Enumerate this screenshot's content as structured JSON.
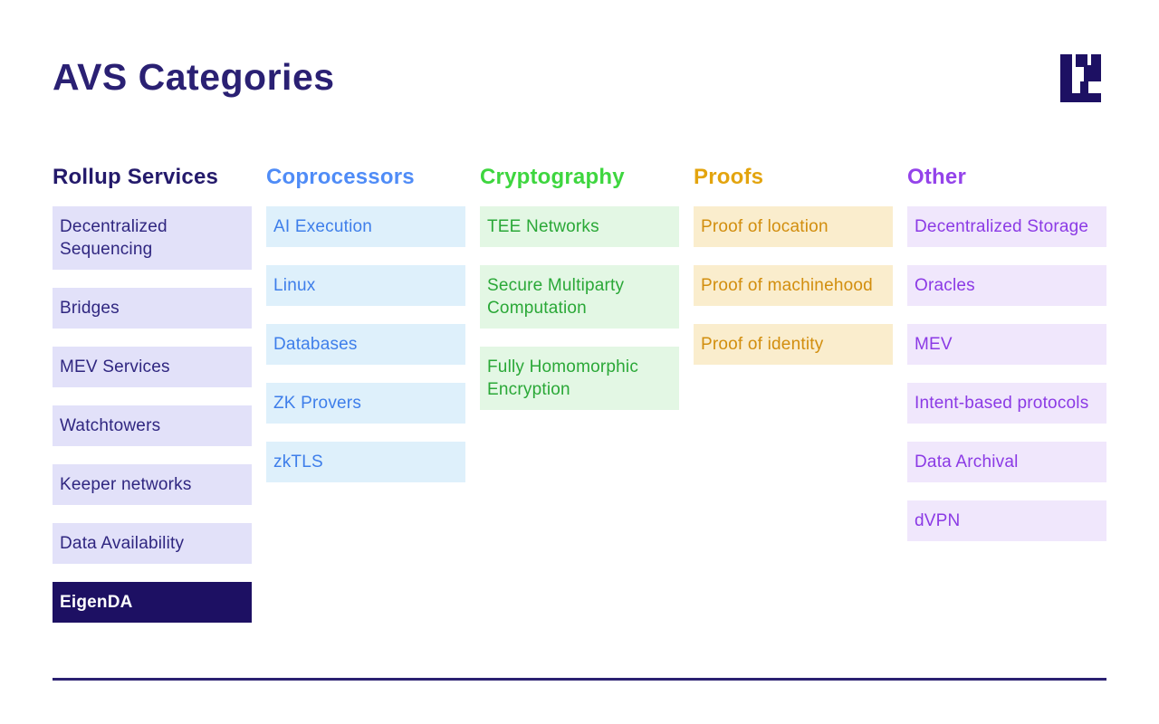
{
  "page": {
    "title": "AVS Categories",
    "logo_color": "#1d1063",
    "divider_color": "#2b2171",
    "title_color": "#2a2073"
  },
  "columns": [
    {
      "id": "rollup-services",
      "label": "Rollup Services",
      "header_color": "#241a6b",
      "item_text_color": "#2f2680",
      "item_bg_color": "#e2e1f9",
      "items": [
        {
          "label": "Decentralized Sequencing"
        },
        {
          "label": "Bridges"
        },
        {
          "label": "MEV Services"
        },
        {
          "label": "Watchtowers"
        },
        {
          "label": "Keeper networks"
        },
        {
          "label": "Data Availability"
        },
        {
          "label": "EigenDA",
          "highlight": true,
          "highlight_bg": "#1d1063",
          "highlight_text": "#ffffff"
        }
      ]
    },
    {
      "id": "coprocessors",
      "label": "Coprocessors",
      "header_color": "#4f8cf7",
      "item_text_color": "#3e7eea",
      "item_bg_color": "#def0fb",
      "items": [
        {
          "label": "AI Execution"
        },
        {
          "label": "Linux"
        },
        {
          "label": "Databases"
        },
        {
          "label": "ZK Provers"
        },
        {
          "label": "zkTLS"
        }
      ]
    },
    {
      "id": "cryptography",
      "label": "Cryptography",
      "header_color": "#3ed63f",
      "item_text_color": "#2aa837",
      "item_bg_color": "#e3f7e4",
      "items": [
        {
          "label": "TEE Networks"
        },
        {
          "label": "Secure Multiparty Computation"
        },
        {
          "label": "Fully Homomorphic Encryption"
        }
      ]
    },
    {
      "id": "proofs",
      "label": "Proofs",
      "header_color": "#e3a40e",
      "item_text_color": "#d28e0e",
      "item_bg_color": "#faedcd",
      "items": [
        {
          "label": "Proof of location"
        },
        {
          "label": "Proof of machinehood"
        },
        {
          "label": "Proof of identity"
        }
      ]
    },
    {
      "id": "other",
      "label": "Other",
      "header_color": "#9443ea",
      "item_text_color": "#8b3ae5",
      "item_bg_color": "#f0e7fc",
      "items": [
        {
          "label": "Decentralized Storage"
        },
        {
          "label": "Oracles"
        },
        {
          "label": "MEV"
        },
        {
          "label": "Intent-based protocols"
        },
        {
          "label": "Data Archival"
        },
        {
          "label": "dVPN"
        }
      ]
    }
  ]
}
